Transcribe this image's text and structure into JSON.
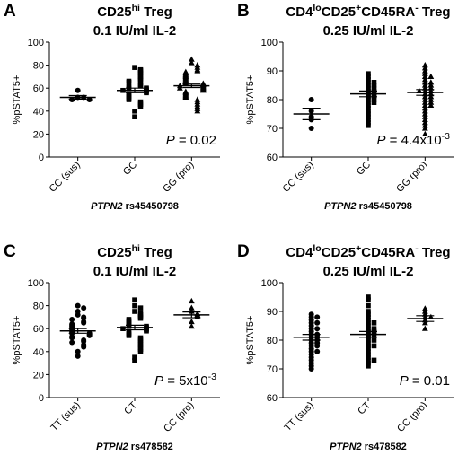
{
  "chart_data": [
    {
      "type": "dot",
      "panel": "A",
      "title": [
        {
          "text": "CD25"
        },
        {
          "text": "hi",
          "sup": true
        },
        {
          "text": " Treg"
        }
      ],
      "subtitle": "0.1 IU/ml IL-2",
      "ylabel": "%pSTAT5+",
      "xlabel": [
        {
          "text": "PTPN2",
          "italic": true
        },
        {
          "text": " rs45450798"
        }
      ],
      "annotation": [
        {
          "text": "P",
          "italic": true
        },
        {
          "text": " = 0.02"
        }
      ],
      "ylim": [
        0,
        100
      ],
      "yticks": [
        0,
        20,
        40,
        60,
        80,
        100
      ],
      "series": [
        {
          "name": "CC (sus)",
          "marker": "circle",
          "color": "#000000",
          "mean": 52,
          "sem": 1.5,
          "values": [
            52,
            52,
            50,
            50,
            58
          ]
        },
        {
          "name": "GC",
          "marker": "square",
          "color": "#000000",
          "mean": 58,
          "sem": 2,
          "values": [
            78,
            76,
            75,
            73,
            72,
            70,
            68,
            67,
            66,
            65,
            63,
            62,
            61,
            60,
            60,
            59,
            58,
            58,
            57,
            56,
            55,
            54,
            53,
            52,
            51,
            50,
            48,
            46,
            44,
            40,
            35
          ]
        },
        {
          "name": "GG (pro)",
          "marker": "triangle",
          "color": "#000000",
          "mean": 62,
          "sem": 1.5,
          "values": [
            85,
            82,
            80,
            78,
            76,
            75,
            74,
            73,
            72,
            71,
            70,
            69,
            68,
            67,
            66,
            65,
            64,
            64,
            63,
            62,
            62,
            61,
            60,
            60,
            59,
            58,
            57,
            56,
            55,
            54,
            53,
            52,
            50,
            48,
            46,
            44,
            42,
            40
          ]
        }
      ]
    },
    {
      "type": "dot",
      "panel": "B",
      "title": [
        {
          "text": "CD4"
        },
        {
          "text": "lo",
          "sup": true
        },
        {
          "text": "CD25"
        },
        {
          "text": "+",
          "sup": true
        },
        {
          "text": "CD45RA"
        },
        {
          "text": "-",
          "sup": true
        },
        {
          "text": " Treg"
        }
      ],
      "subtitle": "0.25 IU/ml IL-2",
      "ylabel": "%pSTAT5+",
      "xlabel": [
        {
          "text": "PTPN2",
          "italic": true
        },
        {
          "text": " rs45450798"
        }
      ],
      "annotation": [
        {
          "text": "P",
          "italic": true
        },
        {
          "text": " = 4.4x10"
        },
        {
          "text": "-3",
          "sup": true
        }
      ],
      "ylim": [
        60,
        100
      ],
      "yticks": [
        60,
        70,
        80,
        90,
        100
      ],
      "series": [
        {
          "name": "CC (sus)",
          "marker": "circle",
          "color": "#000000",
          "mean": 75,
          "sem": 2,
          "values": [
            80,
            76,
            73,
            70,
            74
          ]
        },
        {
          "name": "GC",
          "marker": "square",
          "color": "#000000",
          "mean": 82,
          "sem": 1,
          "values": [
            89,
            88,
            87,
            86,
            86,
            85,
            85,
            84,
            84,
            83,
            83,
            82,
            82,
            81,
            81,
            80,
            80,
            79,
            79,
            78,
            77,
            76,
            75,
            74,
            73,
            72,
            71
          ]
        },
        {
          "name": "GG (pro)",
          "marker": "triangle",
          "color": "#000000",
          "mean": 82.5,
          "sem": 1,
          "values": [
            92,
            91,
            90,
            89,
            88,
            88,
            87,
            86,
            86,
            85,
            85,
            84,
            84,
            83,
            83,
            83,
            82,
            82,
            81,
            81,
            80,
            80,
            79,
            79,
            78,
            78,
            77,
            76,
            75,
            74,
            73,
            72,
            71,
            70,
            68
          ]
        }
      ]
    },
    {
      "type": "dot",
      "panel": "C",
      "title": [
        {
          "text": "CD25"
        },
        {
          "text": "hi",
          "sup": true
        },
        {
          "text": " Treg"
        }
      ],
      "subtitle": "0.1 IU/ml IL-2",
      "ylabel": "%pSTAT5+",
      "xlabel": [
        {
          "text": "PTPN2",
          "italic": true
        },
        {
          "text": " rs478582"
        }
      ],
      "annotation": [
        {
          "text": "P",
          "italic": true
        },
        {
          "text": " = 5x10"
        },
        {
          "text": "-3",
          "sup": true
        }
      ],
      "ylim": [
        0,
        100
      ],
      "yticks": [
        0,
        20,
        40,
        60,
        80,
        100
      ],
      "series": [
        {
          "name": "TT (sus)",
          "marker": "circle",
          "color": "#000000",
          "mean": 58,
          "sem": 2,
          "values": [
            80,
            78,
            75,
            72,
            70,
            69,
            68,
            66,
            65,
            64,
            63,
            62,
            61,
            60,
            59,
            58,
            57,
            56,
            56,
            55,
            54,
            53,
            52,
            50,
            49,
            48,
            46,
            44,
            40,
            36
          ]
        },
        {
          "name": "CT",
          "marker": "square",
          "color": "#000000",
          "mean": 61,
          "sem": 2,
          "values": [
            85,
            80,
            78,
            75,
            73,
            72,
            70,
            69,
            68,
            67,
            66,
            65,
            64,
            63,
            62,
            62,
            61,
            60,
            60,
            59,
            58,
            57,
            56,
            55,
            54,
            52,
            50,
            48,
            46,
            44,
            42,
            40,
            35,
            32
          ]
        },
        {
          "name": "CC (pro)",
          "marker": "triangle",
          "color": "#000000",
          "mean": 72,
          "sem": 2.5,
          "values": [
            84,
            78,
            75,
            73,
            72,
            70,
            66,
            62
          ]
        }
      ]
    },
    {
      "type": "dot",
      "panel": "D",
      "title": [
        {
          "text": "CD4"
        },
        {
          "text": "lo",
          "sup": true
        },
        {
          "text": "CD25"
        },
        {
          "text": "+",
          "sup": true
        },
        {
          "text": "CD45RA"
        },
        {
          "text": "-",
          "sup": true
        },
        {
          "text": " Treg"
        }
      ],
      "subtitle": "0.25 IU/ml IL-2",
      "ylabel": "%pSTAT5+",
      "xlabel": [
        {
          "text": "PTPN2",
          "italic": true
        },
        {
          "text": " rs478582"
        }
      ],
      "annotation": [
        {
          "text": "P",
          "italic": true
        },
        {
          "text": " = 0.01"
        }
      ],
      "ylim": [
        60,
        100
      ],
      "yticks": [
        60,
        70,
        80,
        90,
        100
      ],
      "series": [
        {
          "name": "TT (sus)",
          "marker": "circle",
          "color": "#000000",
          "mean": 81,
          "sem": 1,
          "values": [
            89,
            88,
            88,
            87,
            86,
            86,
            85,
            84,
            84,
            83,
            82,
            82,
            81,
            81,
            80,
            80,
            79,
            79,
            78,
            78,
            77,
            76,
            76,
            75,
            74,
            73,
            72,
            71,
            70
          ]
        },
        {
          "name": "CT",
          "marker": "square",
          "color": "#000000",
          "mean": 82,
          "sem": 1,
          "values": [
            95,
            94,
            92,
            90,
            89,
            88,
            87,
            86,
            86,
            85,
            84,
            84,
            83,
            83,
            82,
            82,
            81,
            80,
            80,
            79,
            78,
            78,
            77,
            76,
            75,
            74,
            73,
            73,
            72,
            71
          ]
        },
        {
          "name": "CC (pro)",
          "marker": "triangle",
          "color": "#000000",
          "mean": 87.5,
          "sem": 1,
          "values": [
            91,
            90,
            89,
            88,
            88,
            87,
            86,
            84
          ]
        }
      ]
    }
  ]
}
